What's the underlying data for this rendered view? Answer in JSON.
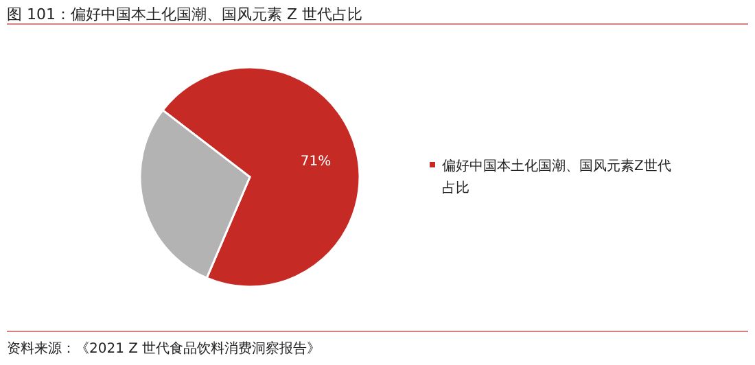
{
  "chart_data": {
    "type": "pie",
    "title": "图 101：偏好中国本土化国潮、国风元素 Z 世代占比",
    "categories": [
      "偏好中国本土化国潮、国风元素Z世代占比",
      null
    ],
    "values": [
      71,
      29
    ],
    "colors": [
      "#c62a24",
      "#b3b3b3"
    ],
    "value_labels": [
      "71%",
      null
    ],
    "legend": "right",
    "annotations": [
      "资料来源：《2021 Z 世代食品饮料消费洞察报告》"
    ]
  }
}
